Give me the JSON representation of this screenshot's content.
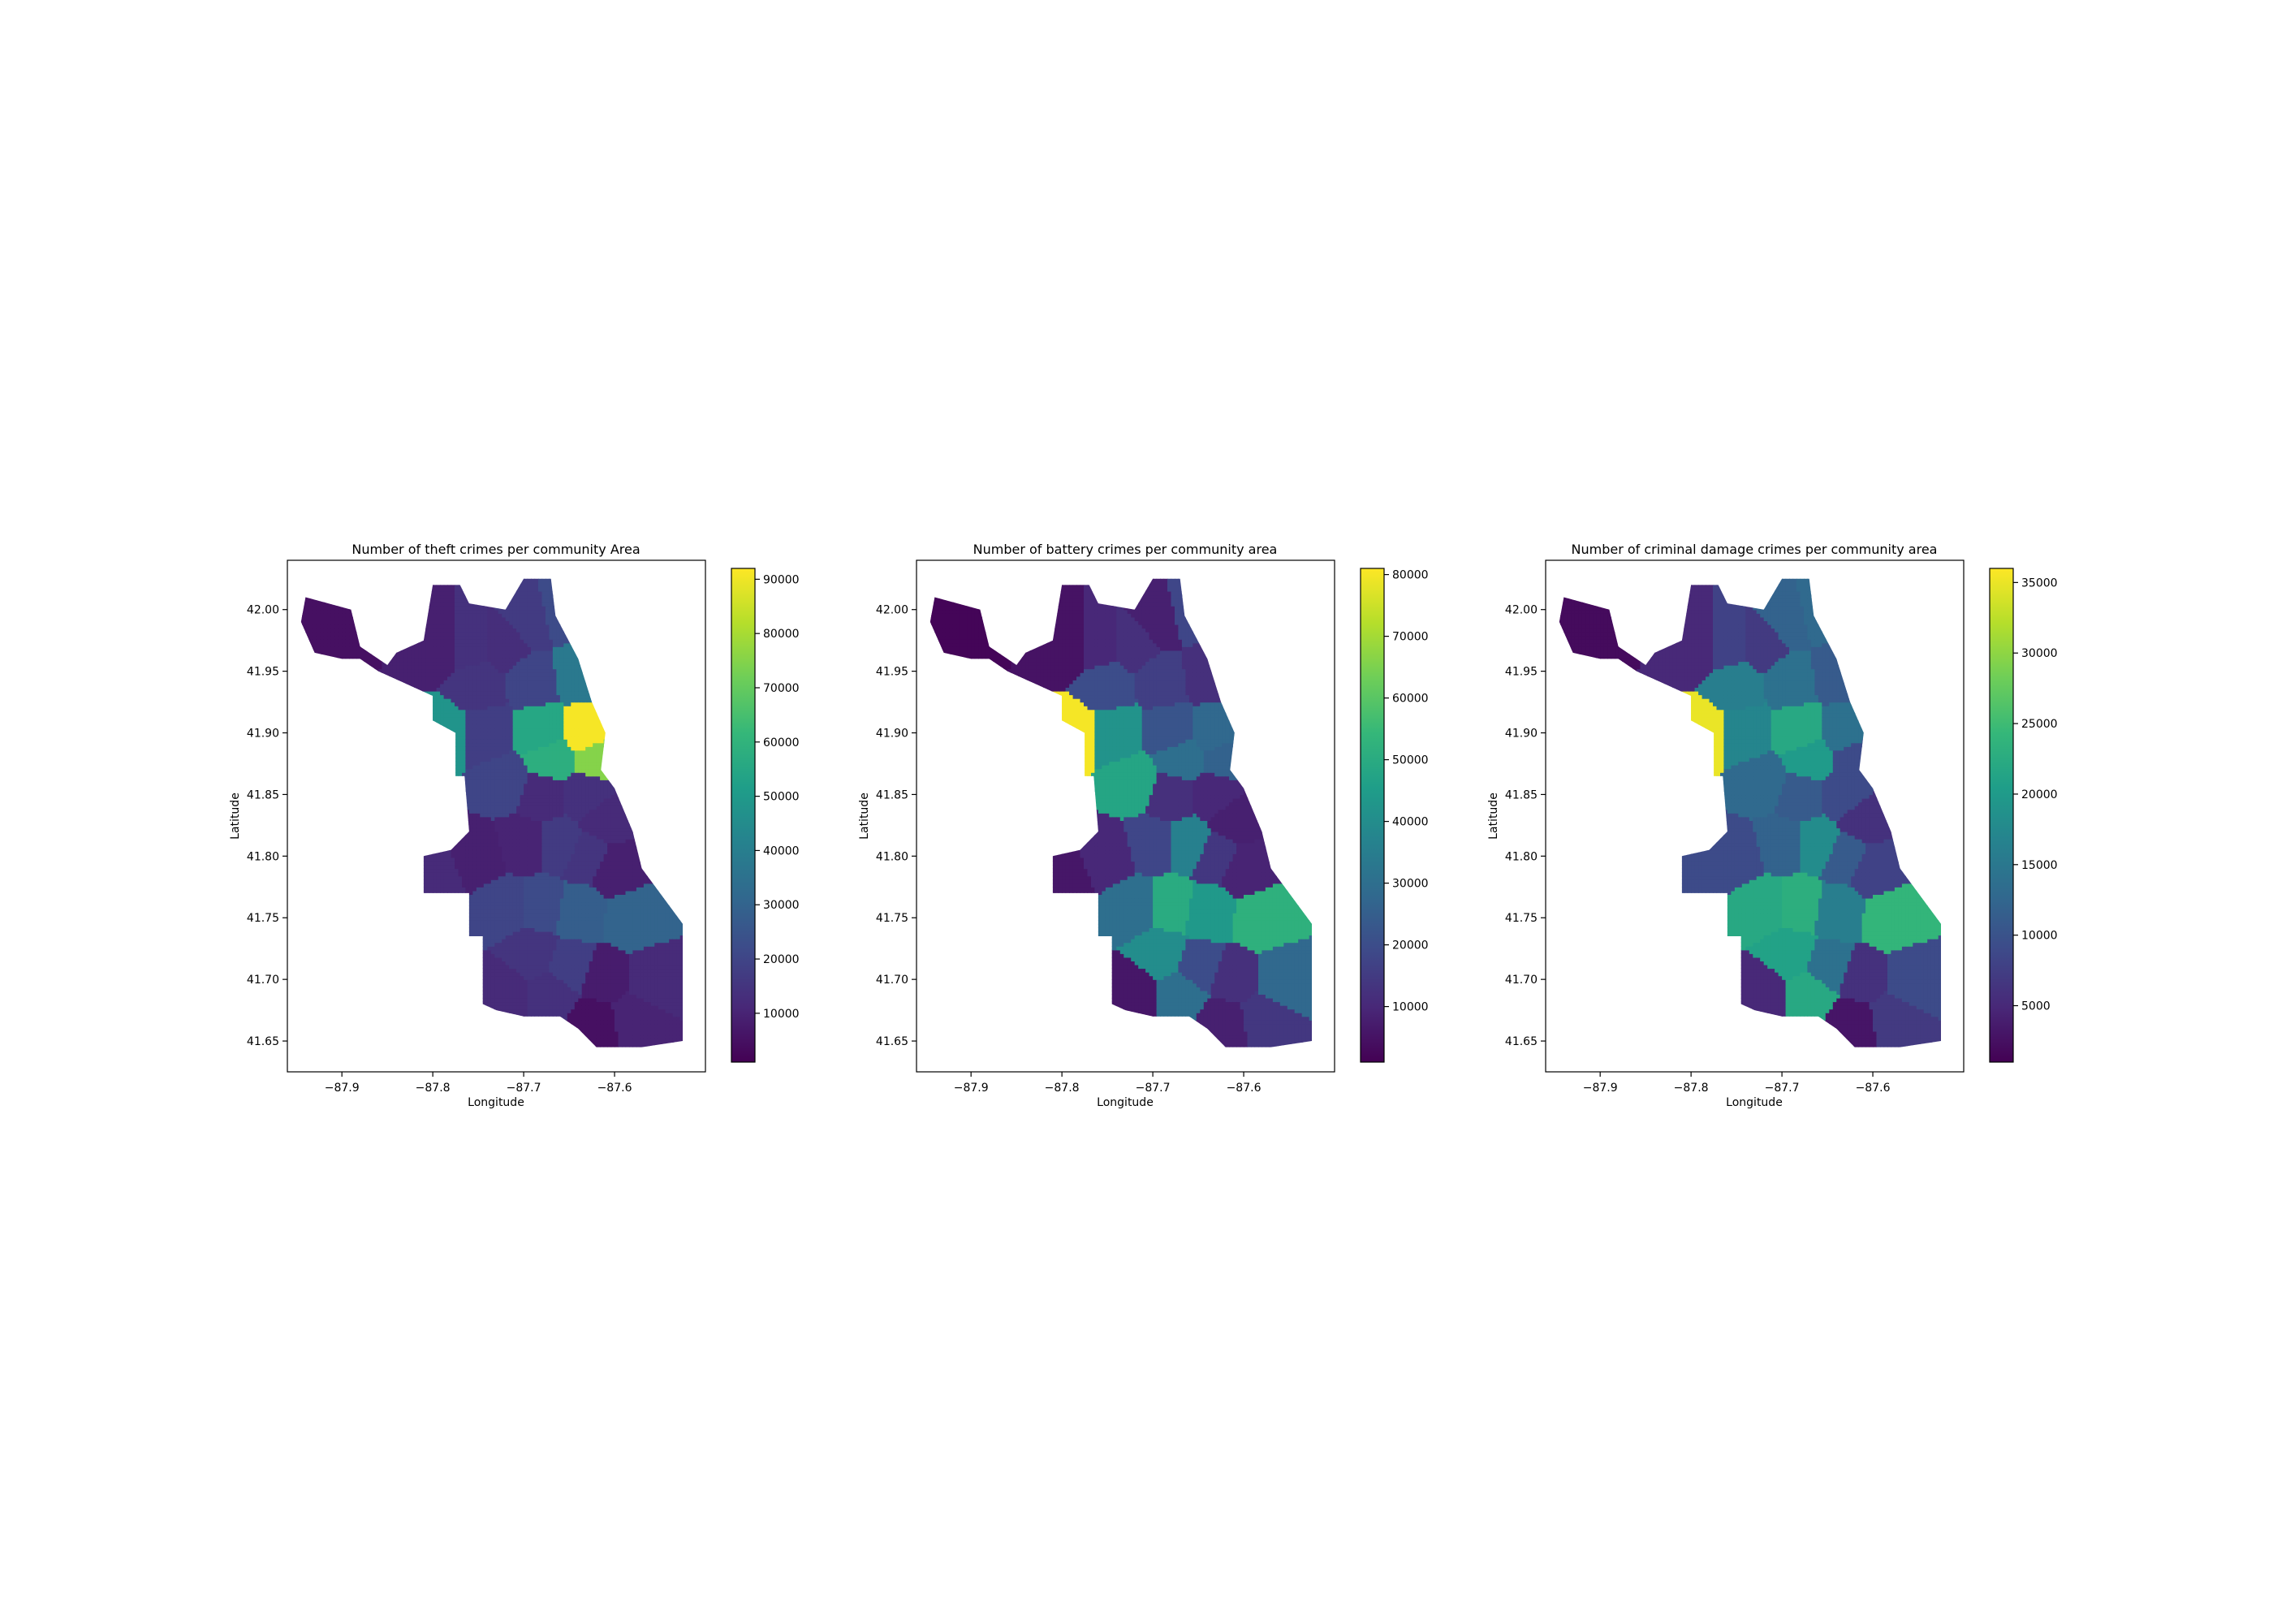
{
  "figure": {
    "background": "#ffffff",
    "colormap": "viridis",
    "colormap_stops": [
      "#440154",
      "#482878",
      "#3e4989",
      "#31688e",
      "#26828e",
      "#1f9e89",
      "#35b779",
      "#6ece58",
      "#b5de2b",
      "#fde725"
    ]
  },
  "chart_data": [
    {
      "type": "choropleth",
      "title": "Number of theft crimes per community Area",
      "xlabel": "Longitude",
      "ylabel": "Latitude",
      "xlim": [
        -87.96,
        -87.5
      ],
      "ylim": [
        41.625,
        42.04
      ],
      "x_ticks": [
        -87.9,
        -87.8,
        -87.7,
        -87.6
      ],
      "x_tick_labels": [
        "−87.9",
        "−87.8",
        "−87.7",
        "−87.6"
      ],
      "y_ticks": [
        41.65,
        41.7,
        41.75,
        41.8,
        41.85,
        41.9,
        41.95,
        42.0
      ],
      "y_tick_labels": [
        "41.65",
        "41.70",
        "41.75",
        "41.80",
        "41.85",
        "41.90",
        "41.95",
        "42.00"
      ],
      "colorbar": {
        "range": [
          1000,
          92000
        ],
        "ticks": [
          10000,
          20000,
          30000,
          40000,
          50000,
          60000,
          70000,
          80000,
          90000
        ],
        "tick_labels": [
          "10000",
          "20000",
          "30000",
          "40000",
          "50000",
          "60000",
          "70000",
          "80000",
          "90000"
        ]
      },
      "areas": [
        {
          "lon": -87.92,
          "lat": 41.98,
          "value": 5000
        },
        {
          "lon": -87.79,
          "lat": 41.97,
          "value": 9000
        },
        {
          "lon": -87.76,
          "lat": 41.97,
          "value": 14000
        },
        {
          "lon": -87.72,
          "lat": 41.97,
          "value": 13000
        },
        {
          "lon": -87.69,
          "lat": 41.99,
          "value": 17000
        },
        {
          "lon": -87.66,
          "lat": 41.995,
          "value": 22000
        },
        {
          "lon": -87.64,
          "lat": 41.95,
          "value": 38000
        },
        {
          "lon": -87.69,
          "lat": 41.945,
          "value": 20000
        },
        {
          "lon": -87.75,
          "lat": 41.94,
          "value": 15000
        },
        {
          "lon": -87.79,
          "lat": 41.9,
          "value": 48000
        },
        {
          "lon": -87.74,
          "lat": 41.9,
          "value": 18000
        },
        {
          "lon": -87.68,
          "lat": 41.9,
          "value": 55000
        },
        {
          "lon": -87.63,
          "lat": 41.9,
          "value": 91000
        },
        {
          "lon": -87.67,
          "lat": 41.88,
          "value": 58000
        },
        {
          "lon": -87.62,
          "lat": 41.88,
          "value": 75000
        },
        {
          "lon": -87.72,
          "lat": 41.86,
          "value": 20000
        },
        {
          "lon": -87.68,
          "lat": 41.85,
          "value": 12000
        },
        {
          "lon": -87.63,
          "lat": 41.85,
          "value": 14000
        },
        {
          "lon": -87.61,
          "lat": 41.83,
          "value": 12000
        },
        {
          "lon": -87.66,
          "lat": 41.81,
          "value": 17000
        },
        {
          "lon": -87.7,
          "lat": 41.81,
          "value": 10000
        },
        {
          "lon": -87.75,
          "lat": 41.8,
          "value": 9000
        },
        {
          "lon": -87.8,
          "lat": 41.785,
          "value": 12000
        },
        {
          "lon": -87.63,
          "lat": 41.8,
          "value": 15000
        },
        {
          "lon": -87.6,
          "lat": 41.79,
          "value": 9000
        },
        {
          "lon": -87.72,
          "lat": 41.76,
          "value": 20000
        },
        {
          "lon": -87.68,
          "lat": 41.76,
          "value": 22000
        },
        {
          "lon": -87.64,
          "lat": 41.755,
          "value": 28000
        },
        {
          "lon": -87.58,
          "lat": 41.75,
          "value": 30000
        },
        {
          "lon": -87.69,
          "lat": 41.72,
          "value": 15000
        },
        {
          "lon": -87.65,
          "lat": 41.71,
          "value": 18000
        },
        {
          "lon": -87.61,
          "lat": 41.7,
          "value": 8000
        },
        {
          "lon": -87.56,
          "lat": 41.7,
          "value": 12000
        },
        {
          "lon": -87.58,
          "lat": 41.67,
          "value": 10000
        },
        {
          "lon": -87.72,
          "lat": 41.69,
          "value": 12000
        },
        {
          "lon": -87.67,
          "lat": 41.69,
          "value": 14000
        },
        {
          "lon": -87.62,
          "lat": 41.665,
          "value": 5000
        }
      ]
    },
    {
      "type": "choropleth",
      "title": "Number of battery crimes per community area",
      "xlabel": "Longitude",
      "ylabel": "Latitude",
      "xlim": [
        -87.96,
        -87.5
      ],
      "ylim": [
        41.625,
        42.04
      ],
      "x_ticks": [
        -87.9,
        -87.8,
        -87.7,
        -87.6
      ],
      "x_tick_labels": [
        "−87.9",
        "−87.8",
        "−87.7",
        "−87.6"
      ],
      "y_ticks": [
        41.65,
        41.7,
        41.75,
        41.8,
        41.85,
        41.9,
        41.95,
        42.0
      ],
      "y_tick_labels": [
        "41.65",
        "41.70",
        "41.75",
        "41.80",
        "41.85",
        "41.90",
        "41.95",
        "42.00"
      ],
      "colorbar": {
        "range": [
          1000,
          81000
        ],
        "ticks": [
          10000,
          20000,
          30000,
          40000,
          50000,
          60000,
          70000,
          80000
        ],
        "tick_labels": [
          "10000",
          "20000",
          "30000",
          "40000",
          "50000",
          "60000",
          "70000",
          "80000"
        ]
      },
      "areas": [
        {
          "lon": -87.92,
          "lat": 41.98,
          "value": 2000
        },
        {
          "lon": -87.79,
          "lat": 41.97,
          "value": 5000
        },
        {
          "lon": -87.76,
          "lat": 41.97,
          "value": 10000
        },
        {
          "lon": -87.72,
          "lat": 41.97,
          "value": 12000
        },
        {
          "lon": -87.69,
          "lat": 41.99,
          "value": 8000
        },
        {
          "lon": -87.66,
          "lat": 41.995,
          "value": 18000
        },
        {
          "lon": -87.64,
          "lat": 41.95,
          "value": 12000
        },
        {
          "lon": -87.69,
          "lat": 41.945,
          "value": 16000
        },
        {
          "lon": -87.75,
          "lat": 41.94,
          "value": 20000
        },
        {
          "lon": -87.79,
          "lat": 41.9,
          "value": 80000
        },
        {
          "lon": -87.74,
          "lat": 41.9,
          "value": 42000
        },
        {
          "lon": -87.68,
          "lat": 41.9,
          "value": 22000
        },
        {
          "lon": -87.63,
          "lat": 41.9,
          "value": 28000
        },
        {
          "lon": -87.67,
          "lat": 41.88,
          "value": 30000
        },
        {
          "lon": -87.62,
          "lat": 41.88,
          "value": 26000
        },
        {
          "lon": -87.72,
          "lat": 41.86,
          "value": 48000
        },
        {
          "lon": -87.68,
          "lat": 41.85,
          "value": 12000
        },
        {
          "lon": -87.63,
          "lat": 41.85,
          "value": 10000
        },
        {
          "lon": -87.61,
          "lat": 41.83,
          "value": 8000
        },
        {
          "lon": -87.66,
          "lat": 41.81,
          "value": 36000
        },
        {
          "lon": -87.7,
          "lat": 41.81,
          "value": 18000
        },
        {
          "lon": -87.75,
          "lat": 41.8,
          "value": 10000
        },
        {
          "lon": -87.8,
          "lat": 41.785,
          "value": 6000
        },
        {
          "lon": -87.63,
          "lat": 41.8,
          "value": 14000
        },
        {
          "lon": -87.6,
          "lat": 41.79,
          "value": 9000
        },
        {
          "lon": -87.72,
          "lat": 41.76,
          "value": 30000
        },
        {
          "lon": -87.68,
          "lat": 41.76,
          "value": 50000
        },
        {
          "lon": -87.64,
          "lat": 41.755,
          "value": 44000
        },
        {
          "lon": -87.58,
          "lat": 41.75,
          "value": 52000
        },
        {
          "lon": -87.69,
          "lat": 41.72,
          "value": 40000
        },
        {
          "lon": -87.65,
          "lat": 41.71,
          "value": 20000
        },
        {
          "lon": -87.61,
          "lat": 41.7,
          "value": 12000
        },
        {
          "lon": -87.56,
          "lat": 41.7,
          "value": 28000
        },
        {
          "lon": -87.58,
          "lat": 41.67,
          "value": 14000
        },
        {
          "lon": -87.72,
          "lat": 41.69,
          "value": 6000
        },
        {
          "lon": -87.67,
          "lat": 41.69,
          "value": 30000
        },
        {
          "lon": -87.62,
          "lat": 41.665,
          "value": 8000
        }
      ]
    },
    {
      "type": "choropleth",
      "title": "Number of criminal damage crimes per community area",
      "xlabel": "Longitude",
      "ylabel": "Latitude",
      "xlim": [
        -87.96,
        -87.5
      ],
      "ylim": [
        41.625,
        42.04
      ],
      "x_ticks": [
        -87.9,
        -87.8,
        -87.7,
        -87.6
      ],
      "x_tick_labels": [
        "−87.9",
        "−87.8",
        "−87.7",
        "−87.6"
      ],
      "y_ticks": [
        41.65,
        41.7,
        41.75,
        41.8,
        41.85,
        41.9,
        41.95,
        42.0
      ],
      "y_tick_labels": [
        "41.65",
        "41.70",
        "41.75",
        "41.80",
        "41.85",
        "41.90",
        "41.95",
        "42.00"
      ],
      "colorbar": {
        "range": [
          1000,
          36000
        ],
        "ticks": [
          5000,
          10000,
          15000,
          20000,
          25000,
          30000,
          35000
        ],
        "tick_labels": [
          "5000",
          "10000",
          "15000",
          "20000",
          "25000",
          "30000",
          "35000"
        ]
      },
      "areas": [
        {
          "lon": -87.92,
          "lat": 41.98,
          "value": 2000
        },
        {
          "lon": -87.79,
          "lat": 41.97,
          "value": 5000
        },
        {
          "lon": -87.76,
          "lat": 41.97,
          "value": 8000
        },
        {
          "lon": -87.72,
          "lat": 41.97,
          "value": 7000
        },
        {
          "lon": -87.69,
          "lat": 41.99,
          "value": 12000
        },
        {
          "lon": -87.66,
          "lat": 41.995,
          "value": 13000
        },
        {
          "lon": -87.64,
          "lat": 41.95,
          "value": 11000
        },
        {
          "lon": -87.69,
          "lat": 41.945,
          "value": 14000
        },
        {
          "lon": -87.75,
          "lat": 41.94,
          "value": 16000
        },
        {
          "lon": -87.79,
          "lat": 41.9,
          "value": 35000
        },
        {
          "lon": -87.74,
          "lat": 41.9,
          "value": 17000
        },
        {
          "lon": -87.68,
          "lat": 41.9,
          "value": 22000
        },
        {
          "lon": -87.63,
          "lat": 41.9,
          "value": 14000
        },
        {
          "lon": -87.67,
          "lat": 41.88,
          "value": 20000
        },
        {
          "lon": -87.62,
          "lat": 41.88,
          "value": 9000
        },
        {
          "lon": -87.72,
          "lat": 41.86,
          "value": 13000
        },
        {
          "lon": -87.68,
          "lat": 41.85,
          "value": 11000
        },
        {
          "lon": -87.63,
          "lat": 41.85,
          "value": 9000
        },
        {
          "lon": -87.61,
          "lat": 41.83,
          "value": 6000
        },
        {
          "lon": -87.66,
          "lat": 41.81,
          "value": 18000
        },
        {
          "lon": -87.7,
          "lat": 41.81,
          "value": 12000
        },
        {
          "lon": -87.75,
          "lat": 41.8,
          "value": 9000
        },
        {
          "lon": -87.8,
          "lat": 41.785,
          "value": 9000
        },
        {
          "lon": -87.63,
          "lat": 41.8,
          "value": 11000
        },
        {
          "lon": -87.6,
          "lat": 41.79,
          "value": 8000
        },
        {
          "lon": -87.72,
          "lat": 41.76,
          "value": 22000
        },
        {
          "lon": -87.68,
          "lat": 41.76,
          "value": 23000
        },
        {
          "lon": -87.64,
          "lat": 41.755,
          "value": 16000
        },
        {
          "lon": -87.58,
          "lat": 41.75,
          "value": 24000
        },
        {
          "lon": -87.69,
          "lat": 41.72,
          "value": 21000
        },
        {
          "lon": -87.65,
          "lat": 41.71,
          "value": 14000
        },
        {
          "lon": -87.61,
          "lat": 41.7,
          "value": 6000
        },
        {
          "lon": -87.56,
          "lat": 41.7,
          "value": 9000
        },
        {
          "lon": -87.58,
          "lat": 41.67,
          "value": 7000
        },
        {
          "lon": -87.72,
          "lat": 41.69,
          "value": 5000
        },
        {
          "lon": -87.67,
          "lat": 41.69,
          "value": 22000
        },
        {
          "lon": -87.62,
          "lat": 41.665,
          "value": 3000
        }
      ]
    }
  ]
}
